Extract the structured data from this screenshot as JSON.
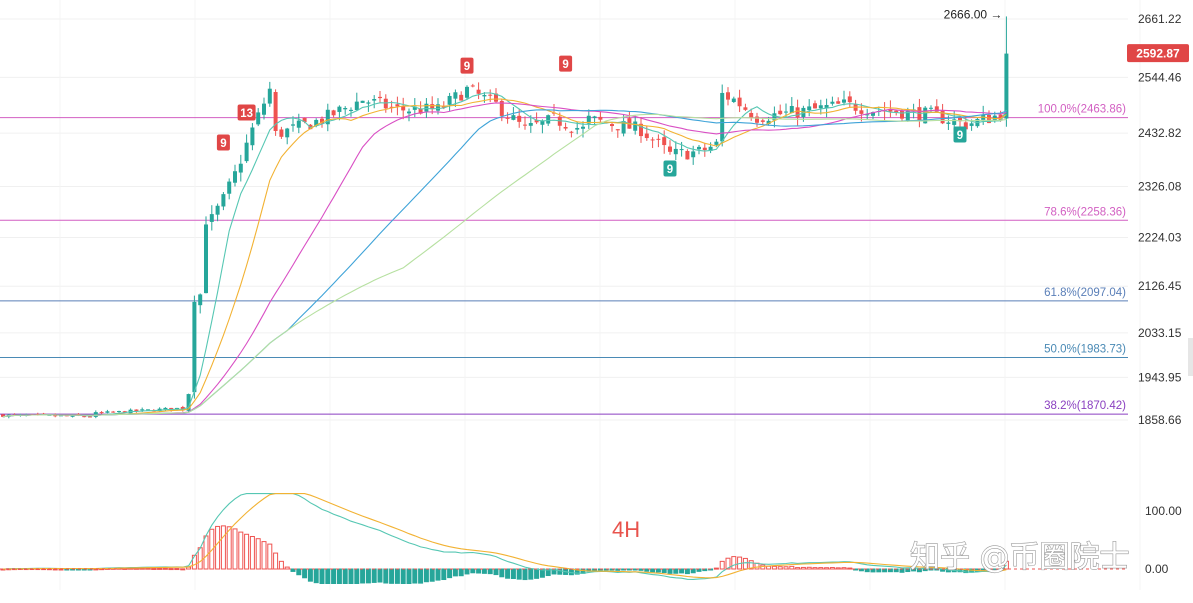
{
  "chart_data": [
    {
      "type": "candlestick",
      "timeframe_label": "4H",
      "price_axis_ticks": [
        2661.22,
        2544.46,
        2432.82,
        2326.08,
        2224.03,
        2126.45,
        2033.15,
        1943.95,
        1858.66
      ],
      "price_range": [
        1845,
        2675
      ],
      "last_price": "2592.87",
      "high_marker": "2666.00 →",
      "fib_levels": [
        {
          "label": "100.0%(2463.86)",
          "value": 2463.86,
          "color": "#d25fc2"
        },
        {
          "label": "78.6%(2258.36)",
          "value": 2258.36,
          "color": "#d25fc2"
        },
        {
          "label": "61.8%(2097.04)",
          "value": 2097.04,
          "color": "#5a7fb8"
        },
        {
          "label": "50.0%(1983.73)",
          "value": 1983.73,
          "color": "#4a8ab5"
        },
        {
          "label": "38.2%(1870.42)",
          "value": 1870.42,
          "color": "#8a3fc0"
        }
      ],
      "td_markers": [
        {
          "label": "13",
          "index": 42,
          "value": 2472,
          "side": "top",
          "color": "#e04646"
        },
        {
          "label": "9",
          "index": 38,
          "value": 2412,
          "side": "top",
          "color": "#e04646"
        },
        {
          "label": "9",
          "index": 80,
          "value": 2566,
          "side": "top",
          "color": "#e04646"
        },
        {
          "label": "9",
          "index": 97,
          "value": 2570,
          "side": "top",
          "color": "#e04646"
        },
        {
          "label": "9",
          "index": 115,
          "value": 2360,
          "side": "bottom",
          "color": "#26a69a"
        },
        {
          "label": "9",
          "index": 165,
          "value": 2428,
          "side": "bottom",
          "color": "#26a69a"
        }
      ],
      "moving_averages": [
        {
          "color": "#56c7b3"
        },
        {
          "color": "#f2b233"
        },
        {
          "color": "#d94fc4"
        },
        {
          "color": "#3ea3d8"
        },
        {
          "color": "#b6e0a0"
        }
      ],
      "macd_axis_ticks": [
        "100.00",
        "0.00"
      ],
      "macd_range": [
        -30,
        145
      ],
      "colors": {
        "up": "#26a69a",
        "down": "#ef5350"
      },
      "watermark": "知乎 @币圈院士"
    }
  ]
}
